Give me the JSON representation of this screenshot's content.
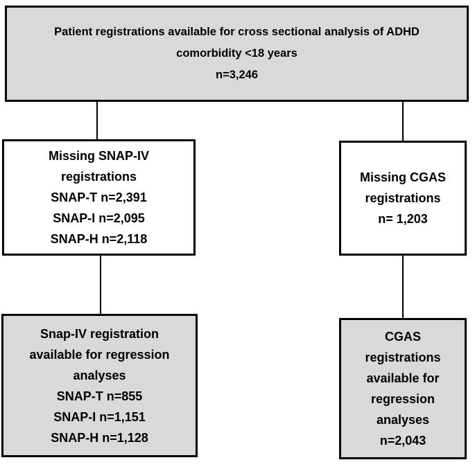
{
  "colors": {
    "background": "#ffffff",
    "box_fill_gray": "#d9d9d9",
    "box_fill_white": "#ffffff",
    "border_color": "#000000",
    "line_color": "#000000"
  },
  "boxes": {
    "top": {
      "lines": [
        "Patient registrations available for cross sectional analysis of ADHD",
        "comorbidity <18 years",
        "n=3,246"
      ]
    },
    "left_middle": {
      "lines": [
        "Missing SNAP-IV",
        "registrations",
        "SNAP-T n=2,391",
        "SNAP-I n=2,095",
        "SNAP-H n=2,118"
      ]
    },
    "right_middle": {
      "lines": [
        "Missing CGAS",
        "registrations",
        "n= 1,203"
      ]
    },
    "left_bottom": {
      "lines": [
        "Snap-IV registration",
        "available for regression",
        "analyses",
        "SNAP-T n=855",
        "SNAP-I n=1,151",
        "SNAP-H n=1,128"
      ]
    },
    "right_bottom": {
      "lines": [
        "CGAS",
        "registrations",
        "available for",
        "regression",
        "analyses",
        "n=2,043"
      ]
    }
  }
}
